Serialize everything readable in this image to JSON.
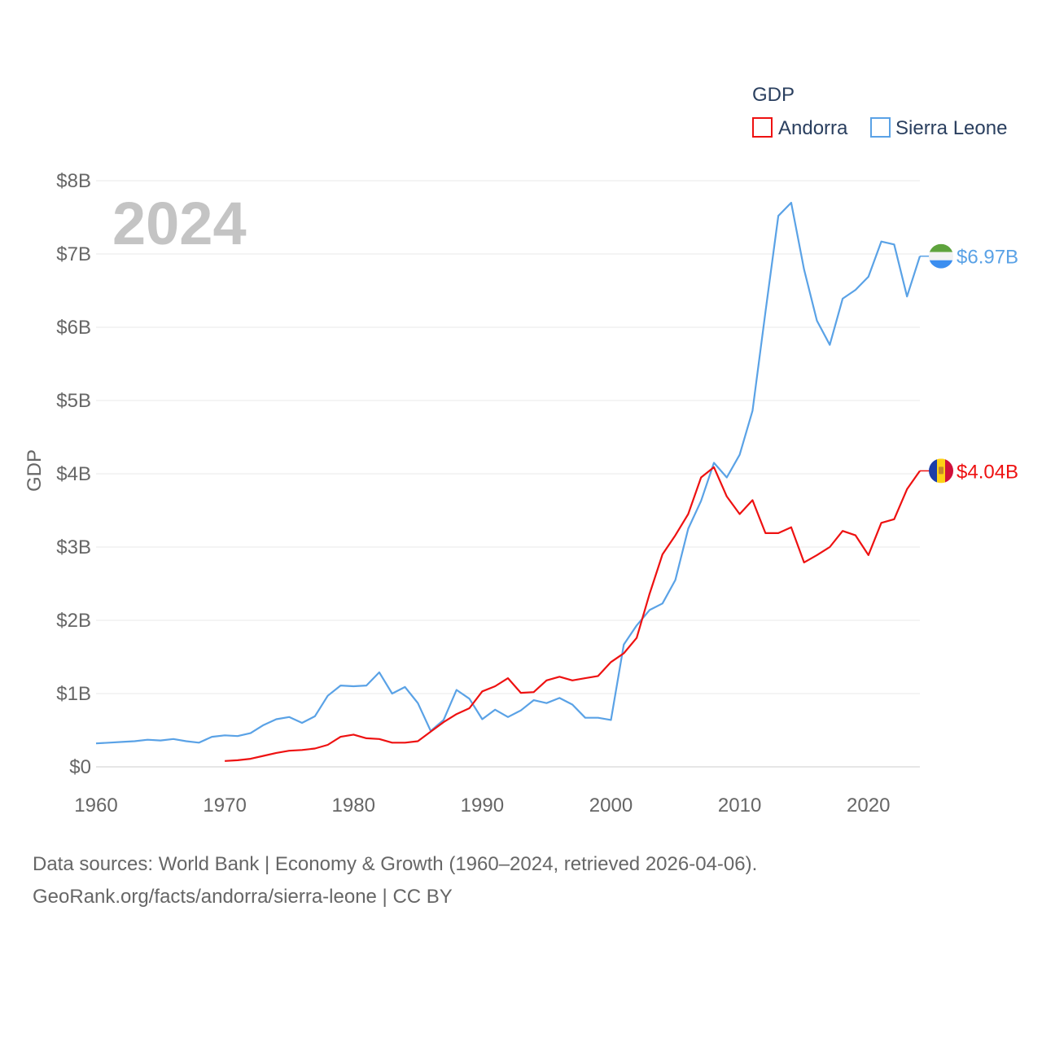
{
  "chart_data": {
    "type": "line",
    "title": "GDP",
    "ylabel": "GDP",
    "xlabel": "",
    "year_label": "2024",
    "xlim": [
      1960,
      2024
    ],
    "ylim": [
      0,
      8000000000
    ],
    "x_ticks": [
      1960,
      1970,
      1980,
      1990,
      2000,
      2010,
      2020
    ],
    "x_tick_labels": [
      "1960",
      "1970",
      "1980",
      "1990",
      "2000",
      "2010",
      "2020"
    ],
    "y_ticks": [
      0,
      1000000000,
      2000000000,
      3000000000,
      4000000000,
      5000000000,
      6000000000,
      7000000000,
      8000000000
    ],
    "y_tick_labels": [
      "$0",
      "$1B",
      "$2B",
      "$3B",
      "$4B",
      "$5B",
      "$6B",
      "$7B",
      "$8B"
    ],
    "legend_title": "GDP",
    "legend_position": "top-right",
    "grid": true,
    "series": [
      {
        "name": "Andorra",
        "color": "#ee1111",
        "end_label": "$4.04B",
        "flag_icon": "andorra-flag-icon",
        "x": [
          1970,
          1971,
          1972,
          1973,
          1974,
          1975,
          1976,
          1977,
          1978,
          1979,
          1980,
          1981,
          1982,
          1983,
          1984,
          1985,
          1986,
          1987,
          1988,
          1989,
          1990,
          1991,
          1992,
          1993,
          1994,
          1995,
          1996,
          1997,
          1998,
          1999,
          2000,
          2001,
          2002,
          2003,
          2004,
          2005,
          2006,
          2007,
          2008,
          2009,
          2010,
          2011,
          2012,
          2013,
          2014,
          2015,
          2016,
          2017,
          2018,
          2019,
          2020,
          2021,
          2022,
          2023,
          2024
        ],
        "values": [
          0.08,
          0.09,
          0.11,
          0.15,
          0.19,
          0.22,
          0.23,
          0.25,
          0.3,
          0.41,
          0.44,
          0.39,
          0.38,
          0.33,
          0.33,
          0.35,
          0.48,
          0.61,
          0.72,
          0.8,
          1.03,
          1.1,
          1.21,
          1.01,
          1.02,
          1.18,
          1.23,
          1.18,
          1.21,
          1.24,
          1.43,
          1.55,
          1.76,
          2.36,
          2.9,
          3.16,
          3.45,
          3.95,
          4.09,
          3.69,
          3.45,
          3.64,
          3.19,
          3.19,
          3.27,
          2.79,
          2.89,
          3.0,
          3.22,
          3.16,
          2.89,
          3.33,
          3.38,
          3.79,
          4.04
        ]
      },
      {
        "name": "Sierra Leone",
        "color": "#5aa2e6",
        "end_label": "$6.97B",
        "flag_icon": "sierra-leone-flag-icon",
        "x": [
          1960,
          1961,
          1962,
          1963,
          1964,
          1965,
          1966,
          1967,
          1968,
          1969,
          1970,
          1971,
          1972,
          1973,
          1974,
          1975,
          1976,
          1977,
          1978,
          1979,
          1980,
          1981,
          1982,
          1983,
          1984,
          1985,
          1986,
          1987,
          1988,
          1989,
          1990,
          1991,
          1992,
          1993,
          1994,
          1995,
          1996,
          1997,
          1998,
          1999,
          2000,
          2001,
          2002,
          2003,
          2004,
          2005,
          2006,
          2007,
          2008,
          2009,
          2010,
          2011,
          2012,
          2013,
          2014,
          2015,
          2016,
          2017,
          2018,
          2019,
          2020,
          2021,
          2022,
          2023,
          2024
        ],
        "values": [
          0.32,
          0.33,
          0.34,
          0.35,
          0.37,
          0.36,
          0.38,
          0.35,
          0.33,
          0.41,
          0.43,
          0.42,
          0.46,
          0.57,
          0.65,
          0.68,
          0.6,
          0.69,
          0.97,
          1.11,
          1.1,
          1.11,
          1.29,
          1.0,
          1.09,
          0.87,
          0.49,
          0.64,
          1.05,
          0.93,
          0.65,
          0.78,
          0.68,
          0.77,
          0.91,
          0.87,
          0.94,
          0.85,
          0.67,
          0.67,
          0.64,
          1.67,
          1.93,
          2.14,
          2.23,
          2.55,
          3.25,
          3.63,
          4.15,
          3.95,
          4.26,
          4.86,
          6.21,
          7.52,
          7.7,
          6.79,
          6.09,
          5.76,
          6.39,
          6.51,
          6.69,
          7.17,
          7.13,
          6.42,
          6.97
        ]
      }
    ]
  },
  "source": {
    "line1": "Data sources: World Bank | Economy & Growth (1960–2024, retrieved 2026-04-06).",
    "line2": "GeoRank.org/facts/andorra/sierra-leone | CC BY"
  }
}
